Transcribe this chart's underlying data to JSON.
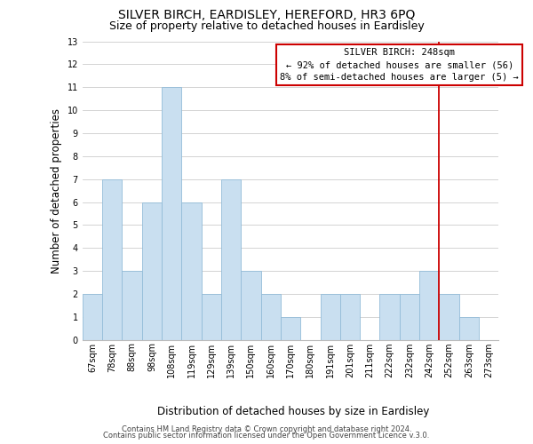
{
  "title": "SILVER BIRCH, EARDISLEY, HEREFORD, HR3 6PQ",
  "subtitle": "Size of property relative to detached houses in Eardisley",
  "xlabel": "Distribution of detached houses by size in Eardisley",
  "ylabel": "Number of detached properties",
  "bar_labels": [
    "67sqm",
    "78sqm",
    "88sqm",
    "98sqm",
    "108sqm",
    "119sqm",
    "129sqm",
    "139sqm",
    "150sqm",
    "160sqm",
    "170sqm",
    "180sqm",
    "191sqm",
    "201sqm",
    "211sqm",
    "222sqm",
    "232sqm",
    "242sqm",
    "252sqm",
    "263sqm",
    "273sqm"
  ],
  "bar_values": [
    2,
    7,
    3,
    6,
    11,
    6,
    2,
    7,
    3,
    2,
    1,
    0,
    2,
    2,
    0,
    2,
    2,
    3,
    2,
    1,
    0
  ],
  "bar_color": "#c9dff0",
  "bar_edge_color": "#93bcd8",
  "ylim": [
    0,
    13
  ],
  "yticks": [
    0,
    1,
    2,
    3,
    4,
    5,
    6,
    7,
    8,
    9,
    10,
    11,
    12,
    13
  ],
  "vline_color": "#cc0000",
  "annotation_title": "SILVER BIRCH: 248sqm",
  "annotation_line1": "← 92% of detached houses are smaller (56)",
  "annotation_line2": "8% of semi-detached houses are larger (5) →",
  "annotation_box_color": "#ffffff",
  "annotation_box_edge": "#cc0000",
  "footer1": "Contains HM Land Registry data © Crown copyright and database right 2024.",
  "footer2": "Contains public sector information licensed under the Open Government Licence v.3.0.",
  "background_color": "#ffffff",
  "grid_color": "#cccccc",
  "title_fontsize": 10,
  "subtitle_fontsize": 9,
  "axis_label_fontsize": 8.5,
  "tick_fontsize": 7,
  "footer_fontsize": 6,
  "annotation_fontsize": 7.5
}
